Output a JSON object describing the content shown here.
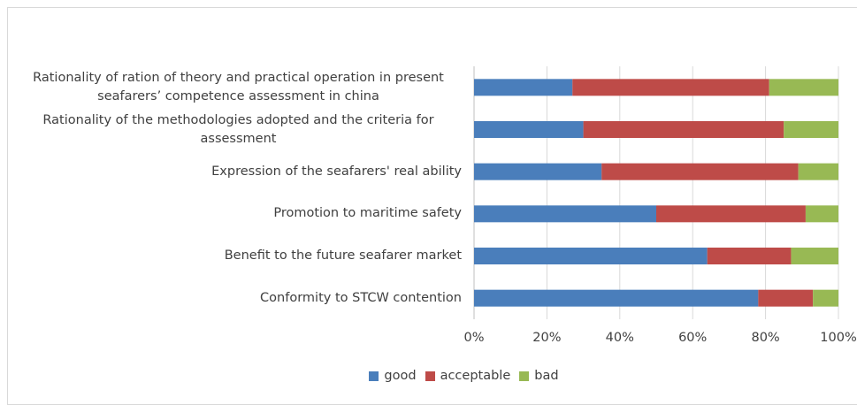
{
  "chart_data": {
    "type": "bar",
    "orientation": "horizontal",
    "stacked": true,
    "categories": [
      "Rationality of ration of theory and practical operation in present seafarers’ competence assessment in china",
      "Rationality of the methodologies adopted and the criteria for assessment",
      "Expression of the seafarers' real ability",
      "Promotion to maritime safety",
      "Benefit to the future seafarer market",
      "Conformity to STCW contention"
    ],
    "series": [
      {
        "name": "good",
        "color": "#4a7ebb",
        "values": [
          27,
          30,
          35,
          50,
          64,
          78
        ]
      },
      {
        "name": "acceptable",
        "color": "#be4b48",
        "values": [
          54,
          55,
          54,
          41,
          23,
          15
        ]
      },
      {
        "name": "bad",
        "color": "#98b954",
        "values": [
          19,
          15,
          11,
          9,
          13,
          7
        ]
      }
    ],
    "xlim": [
      0,
      100
    ],
    "xticks": [
      {
        "value": 0,
        "label": "0%"
      },
      {
        "value": 20,
        "label": "20%"
      },
      {
        "value": 40,
        "label": "40%"
      },
      {
        "value": 60,
        "label": "60%"
      },
      {
        "value": 80,
        "label": "80%"
      },
      {
        "value": 100,
        "label": "100%"
      }
    ],
    "grid": true,
    "legend": "bottom"
  }
}
